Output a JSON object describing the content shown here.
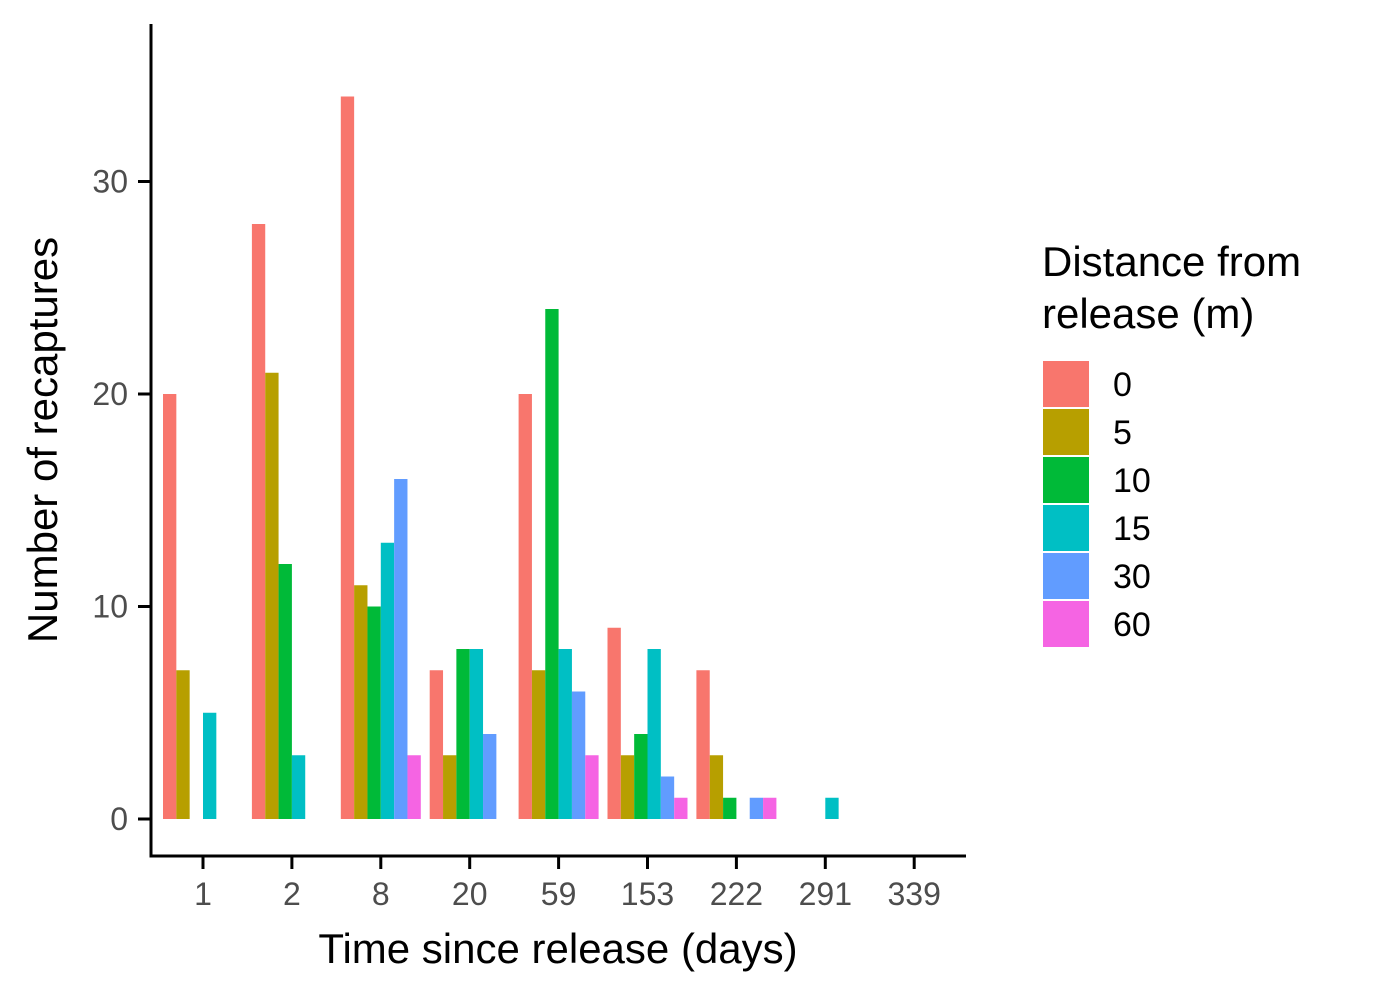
{
  "chart_data": {
    "type": "bar",
    "xlabel": "Time since release (days)",
    "ylabel": "Number of recaptures",
    "categories": [
      "1",
      "2",
      "8",
      "20",
      "59",
      "153",
      "222",
      "291",
      "339"
    ],
    "ylim": [
      0,
      35
    ],
    "yticks": [
      "0",
      "10",
      "20",
      "30"
    ],
    "grid": false,
    "legend": {
      "title_lines": [
        "Distance from",
        "release (m)"
      ],
      "position": "right"
    },
    "series": [
      {
        "name": "0",
        "color": "#F8766D",
        "values": [
          20,
          28,
          34,
          7,
          20,
          9,
          7,
          0,
          0
        ]
      },
      {
        "name": "5",
        "color": "#B79F00",
        "values": [
          7,
          21,
          11,
          3,
          7,
          3,
          3,
          0,
          0
        ]
      },
      {
        "name": "10",
        "color": "#00BA38",
        "values": [
          0,
          12,
          10,
          8,
          24,
          4,
          1,
          0,
          0
        ]
      },
      {
        "name": "15",
        "color": "#00BFC4",
        "values": [
          5,
          3,
          13,
          8,
          8,
          8,
          0,
          1,
          0
        ]
      },
      {
        "name": "30",
        "color": "#619CFF",
        "values": [
          0,
          0,
          16,
          4,
          6,
          2,
          1,
          0,
          0
        ]
      },
      {
        "name": "60",
        "color": "#F564E3",
        "values": [
          0,
          0,
          3,
          0,
          3,
          1,
          1,
          0,
          0
        ]
      }
    ]
  }
}
